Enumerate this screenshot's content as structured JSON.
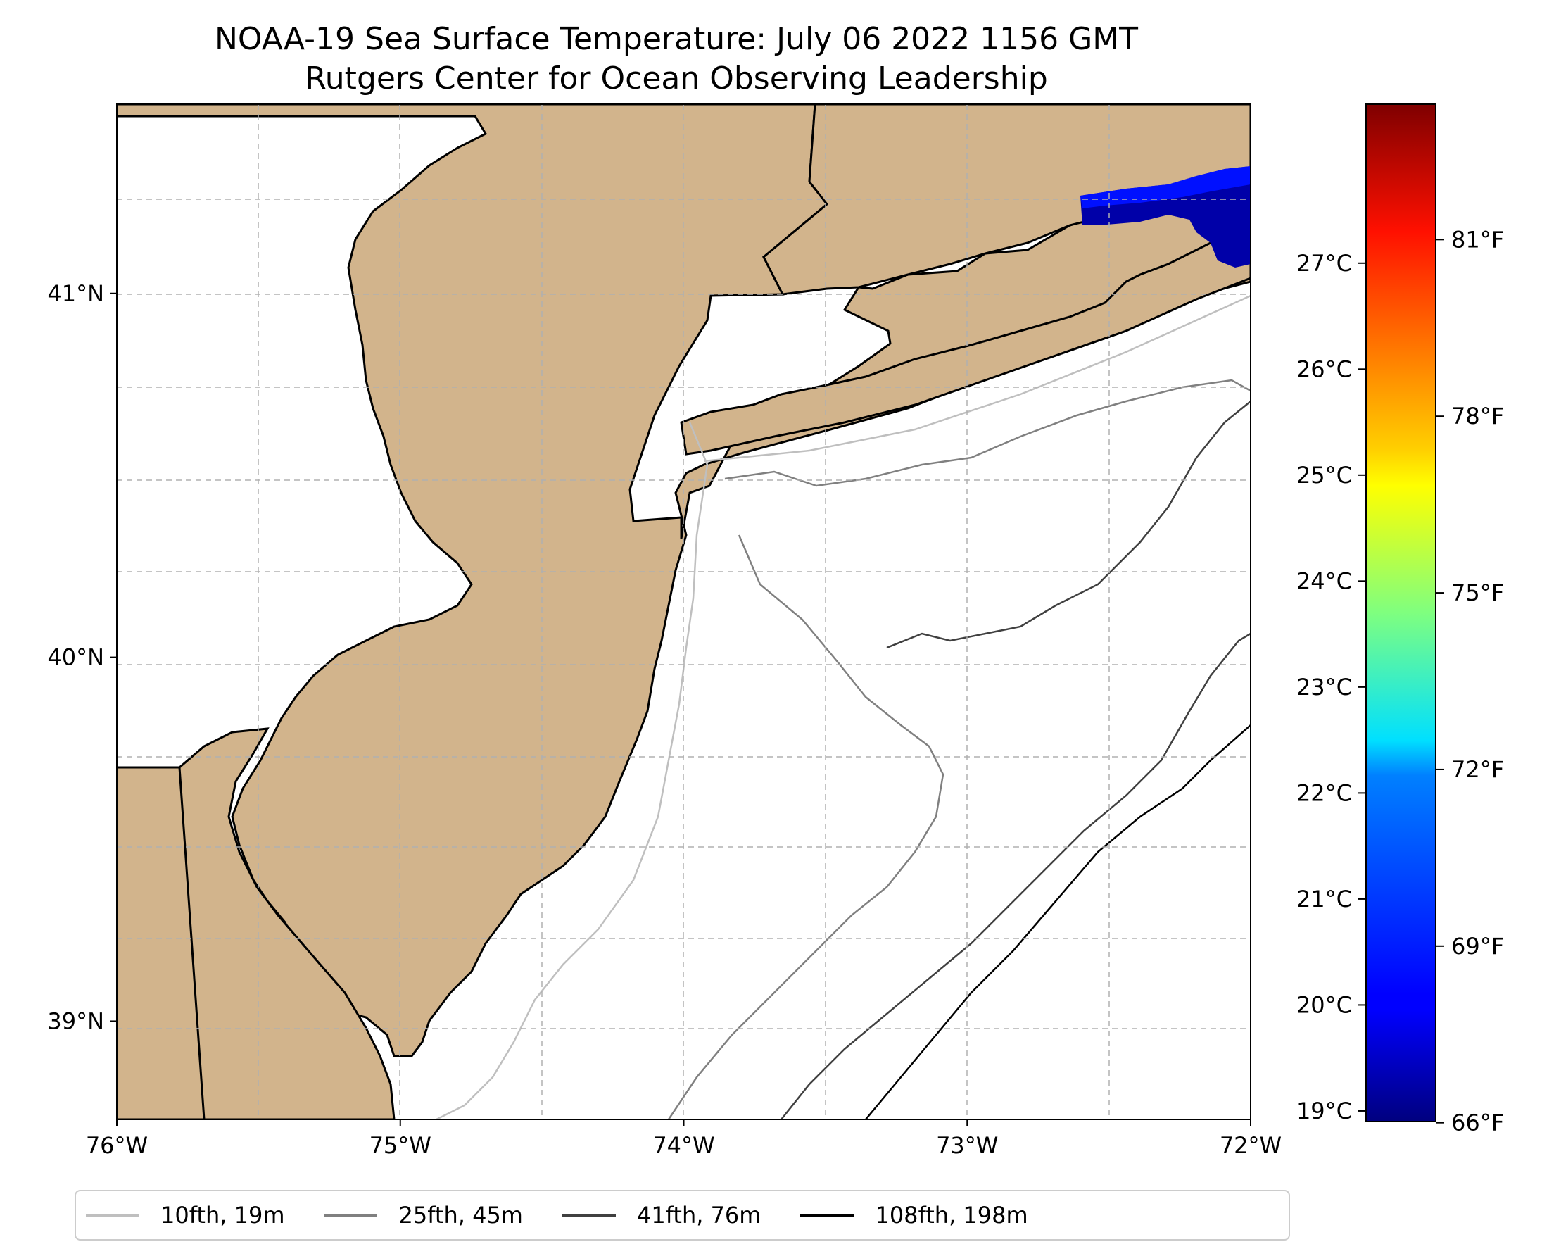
{
  "title": {
    "line1": "NOAA-19 Sea Surface Temperature: July 06 2022 1156 GMT",
    "line2": "Rutgers Center for Ocean Observing Leadership"
  },
  "map": {
    "lon_range": [
      -76,
      -72
    ],
    "lat_range": [
      38.73,
      41.52
    ],
    "land_color": "#d2b48c",
    "water_color": "#ffffff",
    "gridlines": true,
    "lon_ticks": [
      {
        "value": -76,
        "label": "76°W"
      },
      {
        "value": -75,
        "label": "75°W"
      },
      {
        "value": -74,
        "label": "74°W"
      },
      {
        "value": -73,
        "label": "73°W"
      },
      {
        "value": -72,
        "label": "72°W"
      }
    ],
    "lat_ticks": [
      {
        "value": 39,
        "label": "39°N"
      },
      {
        "value": 40,
        "label": "40°N"
      },
      {
        "value": 41,
        "label": "41°N"
      }
    ]
  },
  "colorbar": {
    "colormap": "jet",
    "c_range": [
      18.9,
      28.5
    ],
    "celsius_ticks": [
      {
        "value": 19,
        "label": "19°C"
      },
      {
        "value": 20,
        "label": "20°C"
      },
      {
        "value": 21,
        "label": "21°C"
      },
      {
        "value": 22,
        "label": "22°C"
      },
      {
        "value": 23,
        "label": "23°C"
      },
      {
        "value": 24,
        "label": "24°C"
      },
      {
        "value": 25,
        "label": "25°C"
      },
      {
        "value": 26,
        "label": "26°C"
      },
      {
        "value": 27,
        "label": "27°C"
      }
    ],
    "fahrenheit_ticks": [
      {
        "value": 66,
        "label": "66°F"
      },
      {
        "value": 69,
        "label": "69°F"
      },
      {
        "value": 72,
        "label": "72°F"
      },
      {
        "value": 75,
        "label": "75°F"
      },
      {
        "value": 78,
        "label": "78°F"
      },
      {
        "value": 81,
        "label": "81°F"
      }
    ]
  },
  "legend": {
    "items": [
      {
        "label": "10fth, 19m",
        "color": "#bfbfbf"
      },
      {
        "label": "25fth, 45m",
        "color": "#808080"
      },
      {
        "label": "41fth, 76m",
        "color": "#404040"
      },
      {
        "label": "108fth, 198m",
        "color": "#000000"
      }
    ]
  }
}
